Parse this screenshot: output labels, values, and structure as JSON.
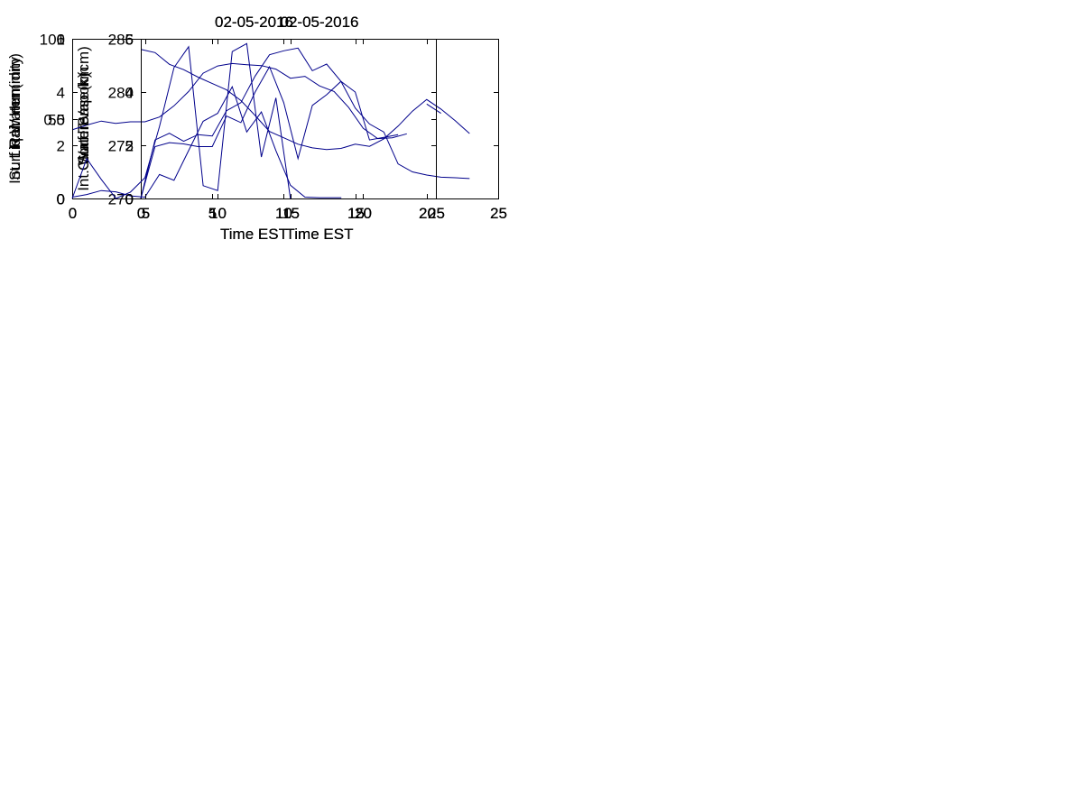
{
  "figure": {
    "background": "#ffffff",
    "line_color": "#00008B",
    "text_color": "#000000"
  },
  "chart_data": [
    {
      "id": "surf-temp",
      "type": "line",
      "title": "02-05-2016",
      "xlabel": "Time EST",
      "ylabel": "Surf Temp (k)",
      "xlim": [
        0,
        25
      ],
      "ylim": [
        270,
        285
      ],
      "xticks": [
        0,
        5,
        10,
        15,
        20,
        25
      ],
      "yticks": [
        270,
        275,
        280,
        285
      ],
      "grid": false,
      "legend": null,
      "x": [
        0,
        1,
        2,
        3,
        4,
        5,
        6,
        7,
        8,
        9,
        10,
        11,
        12,
        13,
        14,
        15,
        16,
        17,
        18,
        19,
        20,
        21,
        22,
        23
      ],
      "y": [
        284.0,
        283.7,
        282.6,
        282.1,
        281.4,
        280.8,
        280.2,
        279.2,
        277.8,
        276.3,
        275.7,
        275.1,
        274.75,
        274.6,
        274.7,
        275.1,
        274.9,
        275.6,
        276.8,
        278.2,
        279.3,
        278.4,
        277.3,
        276.1
      ]
    },
    {
      "id": "surf-rel-humidity",
      "type": "line",
      "title": "02-05-2016",
      "xlabel": "Time EST",
      "ylabel": "Surf Rel. Humidity",
      "xlim": [
        0,
        25
      ],
      "ylim": [
        0,
        100
      ],
      "xticks": [
        0,
        5,
        10,
        15,
        20,
        25
      ],
      "yticks": [
        0,
        50,
        100
      ],
      "grid": false,
      "legend": null,
      "x": [
        0,
        1,
        2,
        3,
        4,
        5,
        6,
        7,
        8,
        9,
        10,
        11,
        12,
        13,
        14,
        15,
        16,
        17,
        18,
        19,
        20,
        21,
        22,
        23
      ],
      "y": [
        43,
        46,
        48.5,
        47,
        48,
        48,
        51,
        58,
        67,
        78.5,
        83,
        84.5,
        83.8,
        83.2,
        81,
        75.3,
        76.5,
        70.5,
        67,
        57,
        44,
        37.5,
        38,
        40.5
      ]
    },
    {
      "id": "int-water-vapor",
      "type": "line",
      "title": "02-05-2016",
      "xlabel": "Time EST",
      "ylabel": "Int. Water Vapor (cm)",
      "xlim": [
        0,
        25
      ],
      "ylim": [
        0,
        6
      ],
      "xticks": [
        0,
        5,
        10,
        15,
        20,
        25
      ],
      "yticks": [
        0,
        2,
        4,
        6
      ],
      "grid": false,
      "legend": null,
      "x": [
        0,
        1,
        2,
        3,
        4,
        5,
        6,
        7,
        8,
        9,
        10,
        11,
        12,
        13,
        14,
        15,
        16,
        17,
        18,
        19,
        20,
        21,
        22,
        23
      ],
      "y": [
        0,
        2.2,
        2.45,
        2.15,
        2.4,
        2.35,
        3.3,
        3.6,
        4.6,
        5.4,
        5.55,
        5.65,
        4.8,
        5.05,
        4.4,
        3.4,
        2.8,
        2.5,
        1.3,
        1.0,
        0.88,
        0.8,
        0.78,
        0.75
      ]
    },
    {
      "id": "int-liq-water",
      "type": "line",
      "title": "02-05-2016",
      "xlabel": "Time EST",
      "ylabel": "Int. Liq Water (mm)",
      "xlim": [
        0,
        25
      ],
      "ylim": [
        0,
        6
      ],
      "xticks": [
        0,
        5,
        10,
        15,
        20,
        25
      ],
      "yticks": [
        0,
        2,
        4,
        6
      ],
      "grid": false,
      "legend": null,
      "x": [
        0,
        1,
        2,
        3,
        4,
        5,
        6,
        7,
        8,
        9,
        10,
        11,
        12,
        13,
        14,
        15,
        16,
        17,
        18,
        18.5
      ],
      "y": [
        0.05,
        0.15,
        0.3,
        0.25,
        0.1,
        0.05,
        0.9,
        0.68,
        1.8,
        2.9,
        3.2,
        4.2,
        2.5,
        3.25,
        1.8,
        0.5,
        0.05,
        0.03,
        0.03,
        0.03
      ]
    },
    {
      "id": "cloud-base",
      "type": "line",
      "title": "02-05-2016",
      "xlabel": "Time EST",
      "ylabel": "Cloud Base km",
      "xlim": [
        0,
        25
      ],
      "ylim": [
        0,
        6
      ],
      "xticks": [
        0,
        5,
        10,
        15,
        20,
        25
      ],
      "yticks": [
        0,
        2,
        4,
        6
      ],
      "grid": false,
      "legend": null,
      "x": [
        0,
        1,
        2,
        3,
        4,
        5,
        6,
        7,
        8,
        9,
        10,
        11,
        12,
        13,
        14,
        15,
        16,
        17,
        18,
        19,
        20,
        21
      ],
      "y": [
        0,
        1.95,
        2.1,
        2.05,
        1.95,
        1.95,
        3.1,
        2.85,
        4.0,
        4.95,
        3.6,
        1.5,
        3.5,
        3.9,
        4.4,
        4.0,
        2.2,
        2.3,
        2.4,
        null,
        3.55,
        3.2
      ]
    },
    {
      "id": "rain",
      "type": "line",
      "title": "02-05-2016",
      "xlabel": "Time EST",
      "ylabel": "Rain mm",
      "xlim": [
        0,
        25
      ],
      "ylim": [
        0,
        1
      ],
      "xticks": [
        0,
        5,
        10,
        15,
        20,
        25
      ],
      "yticks": [
        0,
        0.5,
        1
      ],
      "grid": false,
      "legend": null,
      "x": [
        0,
        1,
        2,
        3,
        4,
        5,
        6,
        7,
        8,
        9,
        10,
        11,
        12,
        13,
        14,
        15
      ],
      "y": [
        0,
        0.25,
        0.12,
        0,
        0.04,
        0.13,
        0.45,
        0.82,
        0.95,
        0.08,
        0.05,
        0.92,
        0.97,
        0.26,
        0.63,
        0
      ]
    }
  ]
}
